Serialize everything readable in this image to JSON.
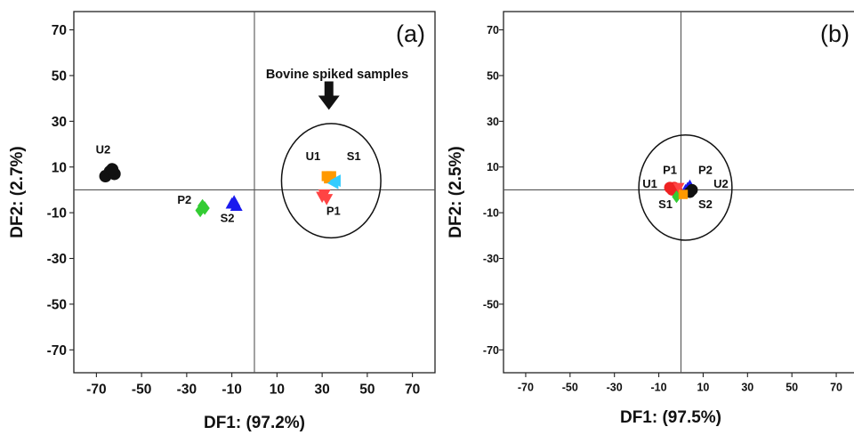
{
  "chart_data": [
    {
      "type": "scatter",
      "panel_label": "(a)",
      "xlabel": "DF1: (97.2%)",
      "ylabel": "DF2: (2.7%)",
      "xlim": [
        -80,
        80
      ],
      "ylim": [
        -80,
        78
      ],
      "xticks": [
        -70,
        -50,
        -30,
        -10,
        10,
        30,
        50,
        70
      ],
      "yticks": [
        -70,
        -50,
        -30,
        -10,
        10,
        30,
        50,
        70
      ],
      "grid": false,
      "reference_lines": {
        "x": 0,
        "y": 0
      },
      "annotation": {
        "text": "Bovine spiked samples",
        "target": [
          33,
          35
        ]
      },
      "ellipse": {
        "cx": 34,
        "cy": 4,
        "rx": 22,
        "ry": 25
      },
      "series": [
        {
          "label": "U2",
          "color": "#111111",
          "marker": "circle",
          "points": [
            [
              -66,
              6
            ],
            [
              -64,
              8
            ],
            [
              -62,
              7
            ],
            [
              -63,
              9
            ]
          ],
          "label_pos": [
            -67,
            16
          ]
        },
        {
          "label": "P2",
          "color": "#33cc33",
          "marker": "diamond",
          "points": [
            [
              -23,
              -7
            ],
            [
              -24,
              -9
            ],
            [
              -22,
              -8
            ]
          ],
          "label_pos": [
            -31,
            -6
          ]
        },
        {
          "label": "S2",
          "color": "#1a1aee",
          "marker": "triangle-up",
          "points": [
            [
              -9,
              -5
            ],
            [
              -8,
              -7
            ],
            [
              -10,
              -6
            ]
          ],
          "label_pos": [
            -12,
            -14
          ]
        },
        {
          "label": "U1",
          "color": "#ff9900",
          "marker": "square",
          "points": [
            [
              32,
              6
            ],
            [
              33,
              5
            ],
            [
              34,
              6
            ]
          ],
          "label_pos": [
            26,
            13
          ]
        },
        {
          "label": "S1",
          "color": "#33ccff",
          "marker": "triangle-left",
          "points": [
            [
              35,
              3
            ],
            [
              36,
              4
            ]
          ],
          "label_pos": [
            44,
            13
          ]
        },
        {
          "label": "P1",
          "color": "#ff4444",
          "marker": "triangle-down",
          "points": [
            [
              30,
              -3
            ],
            [
              32,
              -4
            ],
            [
              31,
              -2
            ]
          ],
          "label_pos": [
            35,
            -11
          ]
        }
      ]
    },
    {
      "type": "scatter",
      "panel_label": "(b)",
      "xlabel": "DF1: (97.5%)",
      "ylabel": "DF2: (2.5%)",
      "xlim": [
        -80,
        80
      ],
      "ylim": [
        -80,
        78
      ],
      "xticks": [
        -70,
        -50,
        -30,
        -10,
        10,
        30,
        50,
        70
      ],
      "yticks": [
        -70,
        -50,
        -30,
        -10,
        10,
        30,
        50,
        70
      ],
      "grid": false,
      "reference_lines": {
        "x": 0,
        "y": 0
      },
      "ellipse": {
        "cx": 2,
        "cy": 1,
        "rx": 21,
        "ry": 23
      },
      "series": [
        {
          "label": "P2",
          "color": "#1a1aee",
          "marker": "triangle-up",
          "points": [
            [
              3,
              1
            ],
            [
              4,
              2
            ],
            [
              2,
              0
            ]
          ],
          "label_pos": [
            11,
            7
          ]
        },
        {
          "label": "U2",
          "color": "#111111",
          "marker": "circle",
          "points": [
            [
              4,
              -1
            ],
            [
              5,
              0
            ]
          ],
          "label_pos": [
            18,
            1
          ]
        },
        {
          "label": "U1",
          "color": "#ee2222",
          "marker": "circle",
          "points": [
            [
              -4,
              0
            ],
            [
              -3,
              1
            ],
            [
              -5,
              1
            ],
            [
              -2,
              0
            ]
          ],
          "label_pos": [
            -14,
            1
          ]
        },
        {
          "label": "P1",
          "color": "#ff4444",
          "marker": "triangle-down",
          "points": [
            [
              -1,
              1
            ]
          ],
          "label_pos": [
            -5,
            7
          ]
        },
        {
          "label": "S1",
          "color": "#33cc33",
          "marker": "diamond",
          "points": [
            [
              -2,
              -3
            ]
          ],
          "label_pos": [
            -7,
            -8
          ]
        },
        {
          "label": "S2",
          "color": "#ff9900",
          "marker": "square",
          "points": [
            [
              1,
              -2
            ]
          ],
          "label_pos": [
            11,
            -8
          ]
        }
      ]
    }
  ]
}
